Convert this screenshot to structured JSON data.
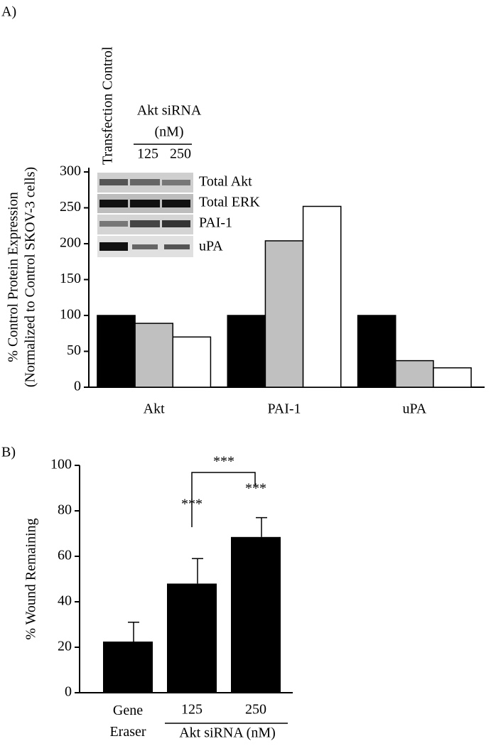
{
  "chart_data": [
    {
      "type": "bar",
      "panel": "A)",
      "y_label": [
        "% Control Protein Expression",
        "(Normalized to Control SKOV-3 cells)"
      ],
      "categories": [
        "Akt",
        "PAI-1",
        "uPA"
      ],
      "series": [
        {
          "name": "Transfection Control",
          "color": "#000000",
          "values": [
            100,
            100,
            100
          ]
        },
        {
          "name": "125",
          "color": "#c0c0c0",
          "values": [
            89,
            204,
            37
          ]
        },
        {
          "name": "250",
          "color": "#ffffff",
          "values": [
            70,
            252,
            27
          ]
        }
      ],
      "inset": {
        "group_label": [
          "Akt siRNA",
          "(nM)"
        ],
        "blot_labels": [
          "Total Akt",
          "Total ERK",
          "PAI-1",
          "uPA"
        ]
      },
      "ylim": [
        0,
        300
      ],
      "yticks": [
        0,
        50,
        100,
        150,
        200,
        250,
        300
      ],
      "grid": false
    },
    {
      "type": "bar",
      "panel": "B)",
      "y_label": "% Wound Remaining",
      "categories": [
        "Gene Eraser",
        "125",
        "250"
      ],
      "group_label": "Akt siRNA (nM)",
      "values": [
        22.5,
        48,
        68.5
      ],
      "errors": [
        8.5,
        11,
        8.5
      ],
      "color": "#000000",
      "annotations": [
        "***",
        "***",
        "***"
      ],
      "ylim": [
        0,
        100
      ],
      "yticks": [
        0,
        20,
        40,
        60,
        80,
        100
      ],
      "grid": false
    }
  ]
}
